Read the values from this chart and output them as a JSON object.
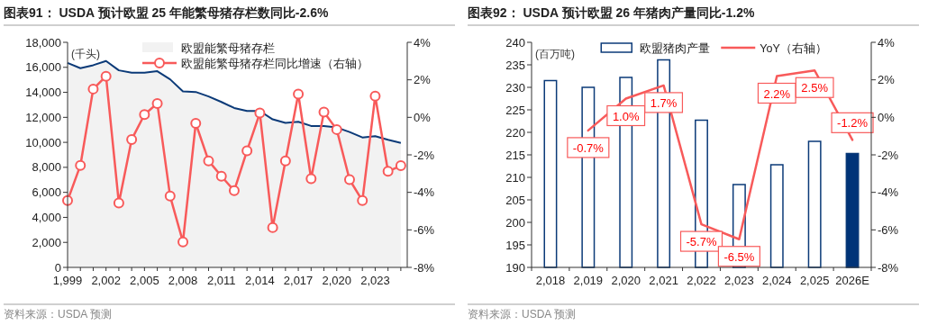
{
  "chart_data": [
    {
      "type": "area",
      "title": "图表91：  USDA 预计欧盟 25 年能繁母猪存栏数同比-2.6%",
      "ylabel": "(千头)",
      "annotations": [
        "资料来源：USDA 预测"
      ],
      "x": [
        1999,
        2000,
        2001,
        2002,
        2003,
        2004,
        2005,
        2006,
        2007,
        2008,
        2009,
        2010,
        2011,
        2012,
        2013,
        2014,
        2015,
        2016,
        2017,
        2018,
        2019,
        2020,
        2021,
        2022,
        2023,
        2024,
        2025
      ],
      "series": [
        {
          "name": "欧盟能繁母猪存栏",
          "color": "#f2f2f2",
          "values": [
            16350,
            15930,
            16170,
            16510,
            15760,
            15570,
            15570,
            15690,
            15040,
            14080,
            14030,
            13670,
            13230,
            12750,
            12510,
            12510,
            11840,
            11550,
            11650,
            11310,
            11310,
            11190,
            10830,
            10390,
            10490,
            10200,
            9960
          ]
        },
        {
          "name": "欧盟能繁母猪存栏同比增速（右轴）",
          "type": "line",
          "marker": "circle",
          "axis": "y2",
          "color": "#f85a5a",
          "values": [
            -4.44,
            -2.56,
            1.51,
            2.19,
            -4.57,
            -1.18,
            0.15,
            0.74,
            -4.2,
            -6.64,
            -0.32,
            -2.32,
            -3.14,
            -3.91,
            -1.78,
            0.23,
            -5.88,
            -2.32,
            1.24,
            -3.27,
            0.28,
            -0.65,
            -3.32,
            -4.44,
            1.13,
            -2.88,
            -2.58
          ]
        }
      ],
      "xlim": [
        1999,
        2025.5
      ],
      "xticks": [
        {
          "value": 1999,
          "label": "1,999"
        },
        {
          "value": 2000,
          "label": null
        },
        {
          "value": 2001,
          "label": null
        },
        {
          "value": 2002,
          "label": "2,002"
        },
        {
          "value": 2003,
          "label": null
        },
        {
          "value": 2004,
          "label": null
        },
        {
          "value": 2005,
          "label": "2,005"
        },
        {
          "value": 2006,
          "label": null
        },
        {
          "value": 2007,
          "label": null
        },
        {
          "value": 2008,
          "label": "2,008"
        },
        {
          "value": 2009,
          "label": null
        },
        {
          "value": 2010,
          "label": null
        },
        {
          "value": 2011,
          "label": "2,011"
        },
        {
          "value": 2012,
          "label": null
        },
        {
          "value": 2013,
          "label": null
        },
        {
          "value": 2014,
          "label": "2,014"
        },
        {
          "value": 2015,
          "label": null
        },
        {
          "value": 2016,
          "label": null
        },
        {
          "value": 2017,
          "label": "2,017"
        },
        {
          "value": 2018,
          "label": null
        },
        {
          "value": 2019,
          "label": null
        },
        {
          "value": 2020,
          "label": "2,020"
        },
        {
          "value": 2021,
          "label": null
        },
        {
          "value": 2022,
          "label": null
        },
        {
          "value": 2023,
          "label": "2,023"
        },
        {
          "value": 2024,
          "label": null
        },
        {
          "value": 2025,
          "label": null
        }
      ],
      "ylim": [
        0,
        18000
      ],
      "yticks": [
        {
          "value": 0,
          "label": "0"
        },
        {
          "value": 2000,
          "label": "2,000"
        },
        {
          "value": 4000,
          "label": "4,000"
        },
        {
          "value": 6000,
          "label": "6,000"
        },
        {
          "value": 8000,
          "label": "8,000"
        },
        {
          "value": 10000,
          "label": "10,000"
        },
        {
          "value": 12000,
          "label": "12,000"
        },
        {
          "value": 14000,
          "label": "14,000"
        },
        {
          "value": 16000,
          "label": "16,000"
        },
        {
          "value": 18000,
          "label": "18,000"
        }
      ],
      "y2lim": [
        -8,
        4
      ],
      "y2ticks": [
        {
          "value": -8,
          "label": "-8%"
        },
        {
          "value": -6,
          "label": "-6%"
        },
        {
          "value": -4,
          "label": "-4%"
        },
        {
          "value": -2,
          "label": "-2%"
        },
        {
          "value": 0,
          "label": "0%"
        },
        {
          "value": 2,
          "label": "2%"
        },
        {
          "value": 4,
          "label": "4%"
        }
      ],
      "legend": "top",
      "grid": false
    },
    {
      "type": "bar",
      "title": "图表92：  USDA 预计欧盟 26 年猪肉产量同比-1.2%",
      "ylabel": "(百万吨)",
      "annotations": [
        "资料来源：USDA 预测"
      ],
      "categories": [
        "2,018",
        "2,019",
        "2,020",
        "2,021",
        "2,022",
        "2,023",
        "2,024",
        "2,025",
        "2026E"
      ],
      "series": [
        {
          "name": "欧盟猪肉产量",
          "colors": [
            "#ffffff",
            "#ffffff",
            "#ffffff",
            "#ffffff",
            "#ffffff",
            "#ffffff",
            "#ffffff",
            "#ffffff",
            "#003378"
          ],
          "values": [
            231.5,
            230.0,
            232.2,
            236.1,
            222.7,
            208.4,
            212.8,
            218.0,
            215.3
          ]
        },
        {
          "name": "YoY（右轴）",
          "type": "line",
          "axis": "y2",
          "color": "#f85a5a",
          "values": [
            null,
            -0.7,
            1.0,
            1.7,
            -5.7,
            -6.5,
            2.2,
            2.5,
            -1.2
          ],
          "value_labels": [
            null,
            "-0.7%",
            "1.0%",
            "1.7%",
            "-5.7%",
            "-6.5%",
            "2.2%",
            "2.5%",
            "-1.2%"
          ]
        }
      ],
      "ylim": [
        190,
        240
      ],
      "yticks": [
        190,
        195,
        200,
        205,
        210,
        215,
        220,
        225,
        230,
        235,
        240
      ],
      "y2lim": [
        -8,
        4
      ],
      "y2ticks": [
        {
          "value": -8,
          "label": "-8%"
        },
        {
          "value": -6,
          "label": "-6%"
        },
        {
          "value": -4,
          "label": "-4%"
        },
        {
          "value": -2,
          "label": "-2%"
        },
        {
          "value": 0,
          "label": "0%"
        },
        {
          "value": 2,
          "label": "2%"
        },
        {
          "value": 4,
          "label": "4%"
        }
      ],
      "legend": "top",
      "grid": false
    }
  ]
}
